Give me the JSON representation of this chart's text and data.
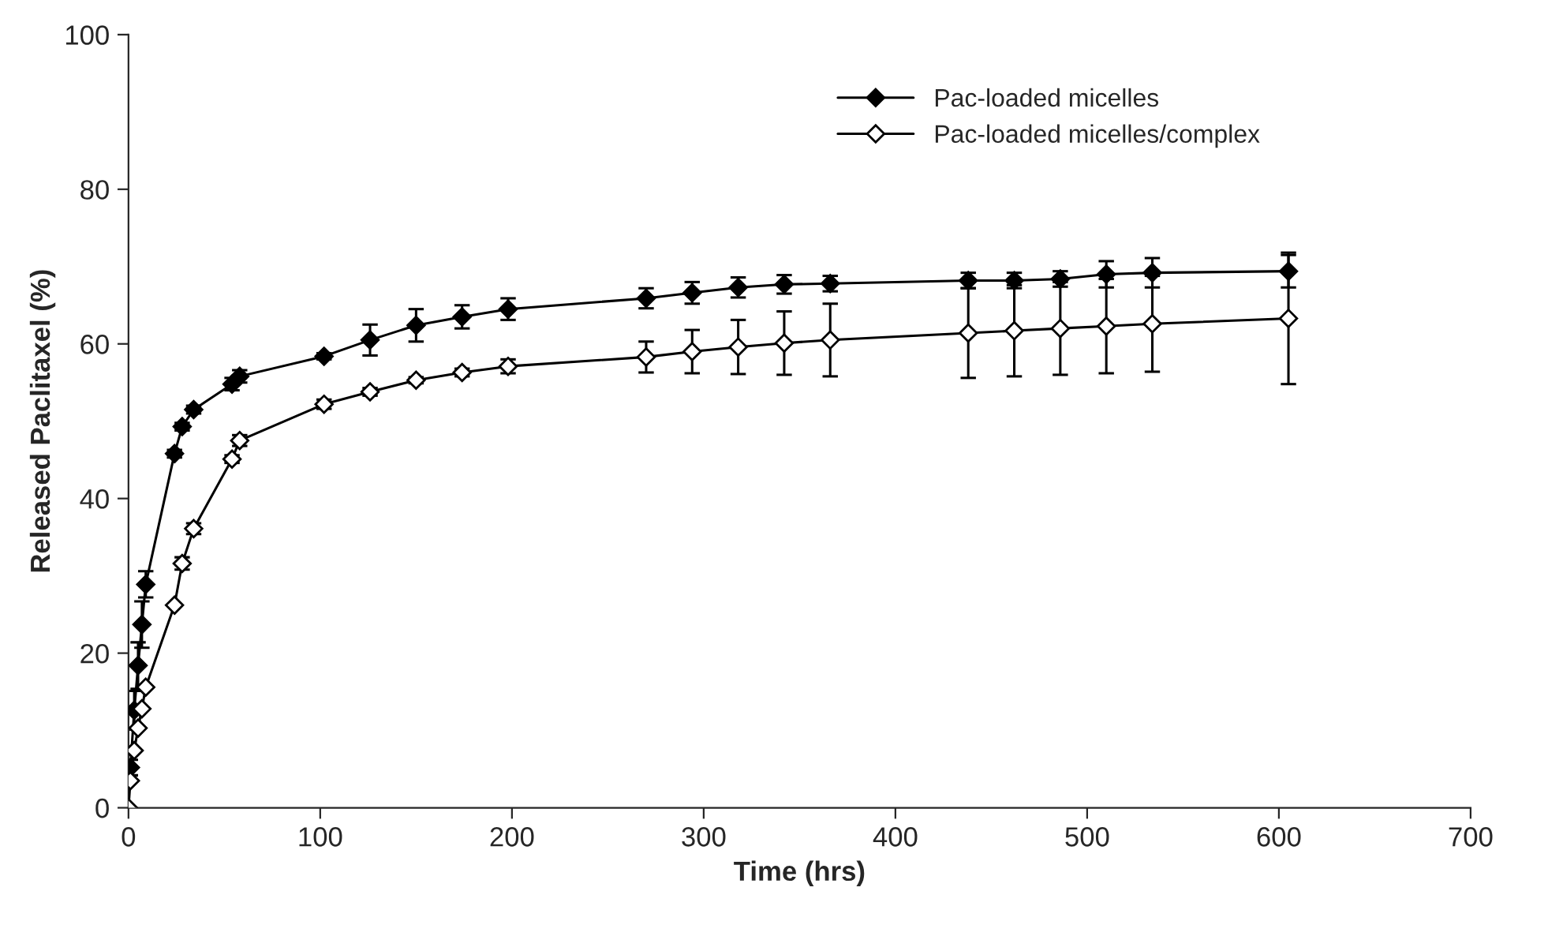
{
  "chart_data": {
    "type": "line",
    "xlabel": "Time (hrs)",
    "ylabel": "Released Paclitaxel (%)",
    "xlim": [
      0,
      700
    ],
    "xticks": [
      0,
      100,
      200,
      300,
      400,
      500,
      600,
      700
    ],
    "ylim": [
      0,
      100
    ],
    "yticks": [
      0,
      20,
      40,
      60,
      80,
      100
    ],
    "grid": false,
    "legend": "top right",
    "marker": "diamond",
    "line_style": "solid",
    "series": [
      {
        "name": "Pac-loaded micelles",
        "color": "#000000",
        "x": [
          1,
          3,
          5,
          7,
          9,
          24,
          28,
          34,
          54,
          58,
          102,
          126,
          150,
          174,
          198,
          270,
          294,
          318,
          342,
          366,
          438,
          462,
          486,
          510,
          534,
          605
        ],
        "values": [
          5.2,
          12.6,
          18.4,
          23.7,
          28.9,
          45.8,
          49.3,
          51.5,
          54.8,
          55.8,
          58.4,
          60.5,
          62.4,
          63.5,
          64.5,
          65.9,
          66.6,
          67.3,
          67.7,
          67.8,
          68.2,
          68.2,
          68.4,
          69.0,
          69.2,
          69.4
        ],
        "errors": [
          1,
          2.5,
          3,
          3,
          1.7,
          0.5,
          0.5,
          0.5,
          0.8,
          0.8,
          0.4,
          2,
          2.1,
          1.5,
          1.4,
          1.3,
          1.4,
          1.3,
          1.2,
          1,
          1,
          1,
          1,
          1.7,
          1.9,
          2.1
        ]
      },
      {
        "name": "Pac-loaded micelles/complex",
        "color": "#ffffff",
        "x": [
          0,
          1,
          3,
          5,
          7,
          9,
          24,
          28,
          34,
          54,
          58,
          102,
          126,
          150,
          174,
          198,
          270,
          294,
          318,
          342,
          366,
          438,
          462,
          486,
          510,
          534,
          605
        ],
        "values": [
          0,
          3.5,
          7.4,
          10.3,
          12.8,
          15.6,
          26.2,
          31.6,
          36.1,
          45.1,
          47.5,
          52.2,
          53.8,
          55.3,
          56.3,
          57.1,
          58.3,
          59.0,
          59.6,
          60.1,
          60.5,
          61.4,
          61.7,
          62.0,
          62.3,
          62.6,
          63.3
        ],
        "errors": [
          null,
          null,
          null,
          null,
          null,
          null,
          null,
          0.8,
          0.7,
          0.5,
          0.7,
          0.6,
          0.5,
          0.4,
          0.5,
          0.9,
          2,
          2.8,
          3.5,
          4.1,
          4.7,
          5.8,
          5.9,
          6,
          6.1,
          6.2,
          8.5
        ]
      }
    ]
  }
}
